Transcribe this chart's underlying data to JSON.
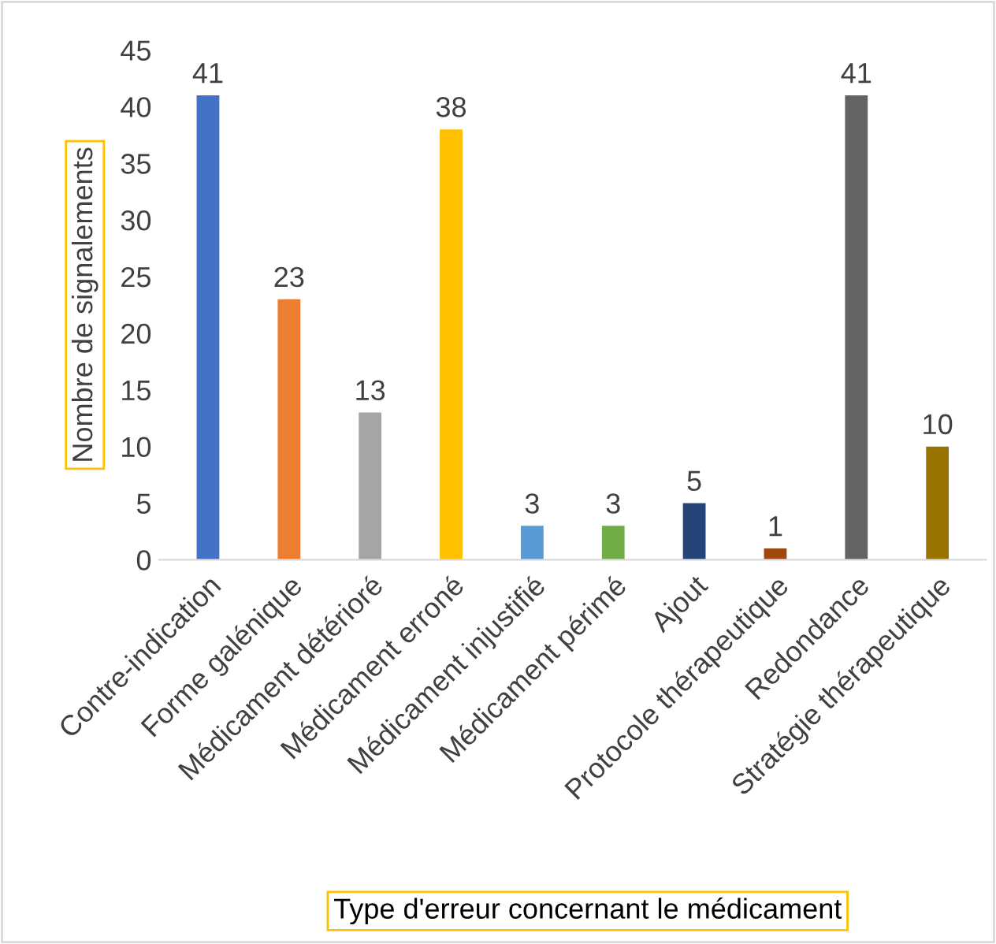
{
  "chart_data": {
    "type": "bar",
    "xlabel": "Type d'erreur concernant le médicament",
    "ylabel": "Nombre de signalements",
    "categories": [
      "Contre-indication",
      "Forme galénique",
      "Médicament détérioré",
      "Médicament erroné",
      "Médicament injustifié",
      "Médicament périmé",
      "Ajout",
      "Protocole thérapeutique",
      "Redondance",
      "Stratégie thérapeutique"
    ],
    "values": [
      41,
      23,
      13,
      38,
      3,
      3,
      5,
      1,
      41,
      10
    ],
    "colors": [
      "#4472c4",
      "#ed7d31",
      "#a5a5a5",
      "#ffc000",
      "#5b9bd5",
      "#70ad47",
      "#264478",
      "#9e480e",
      "#636363",
      "#997300"
    ],
    "ylim": [
      0,
      45
    ],
    "yticks": [
      0,
      5,
      10,
      15,
      20,
      25,
      30,
      35,
      40,
      45
    ],
    "grid": false,
    "legend": false,
    "data_labels": true
  }
}
